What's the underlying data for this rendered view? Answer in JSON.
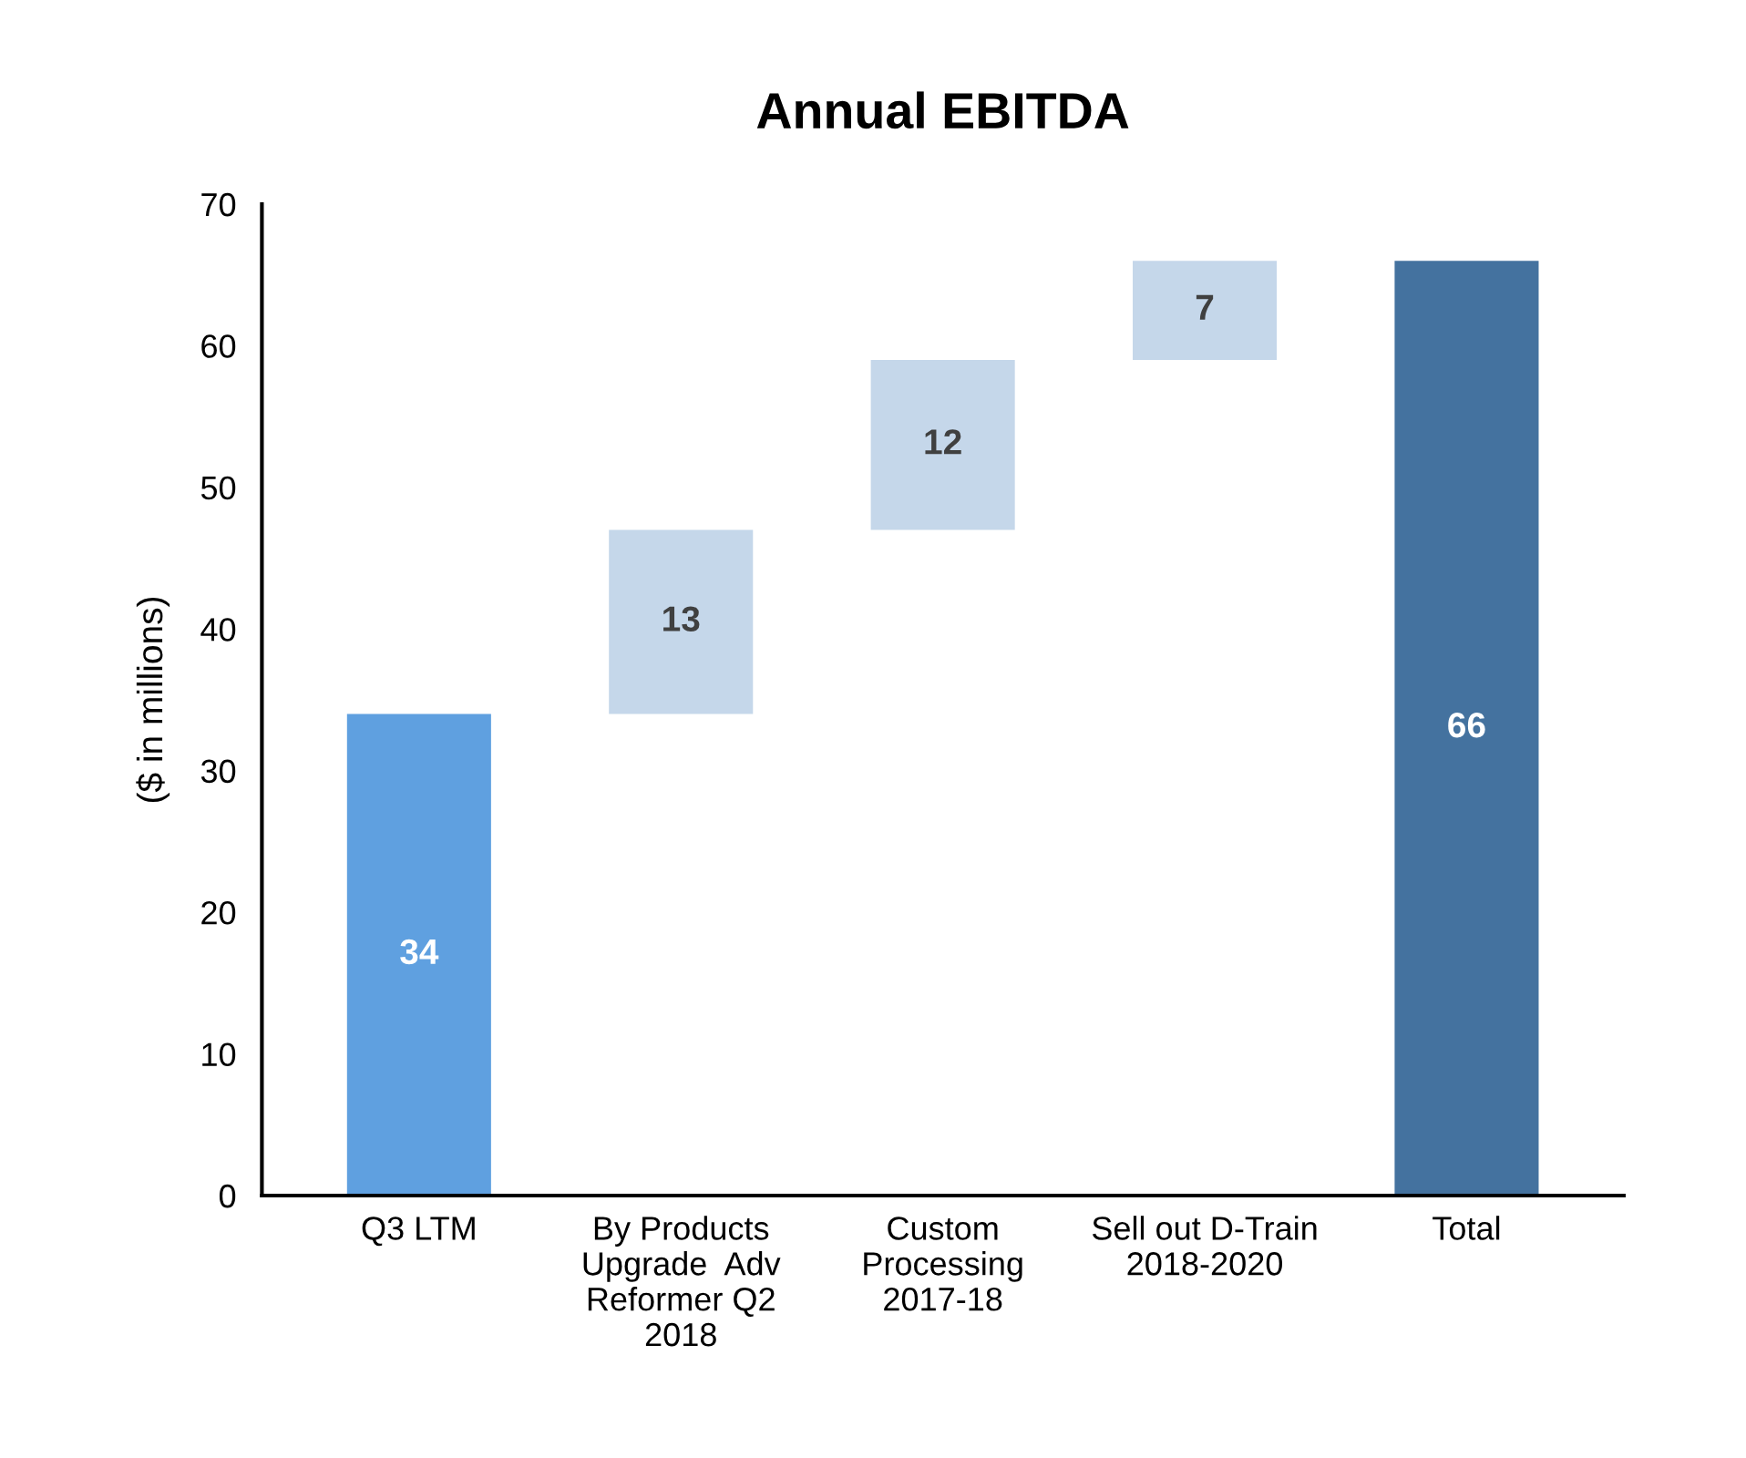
{
  "chart_data": {
    "type": "bar",
    "title": "Annual EBITDA",
    "ylabel": "($ in millions)",
    "categories": [
      "Q3 LTM",
      "By Products\nUpgrade  Adv\nReformer Q2\n2018",
      "Custom\nProcessing\n2017-18",
      "Sell out D-Train\n2018-2020",
      "Total"
    ],
    "values": [
      34,
      13,
      12,
      7,
      66
    ],
    "base": [
      0,
      34,
      47,
      59,
      0
    ],
    "colors": [
      "#5fa0e0",
      "#c5d7ea",
      "#c5d7ea",
      "#c5d7ea",
      "#44729f"
    ],
    "ylim": [
      0,
      70
    ],
    "yticks": [
      0,
      10,
      20,
      30,
      40,
      50,
      60,
      70
    ],
    "data_labels": true,
    "grid": false,
    "legend": false
  }
}
